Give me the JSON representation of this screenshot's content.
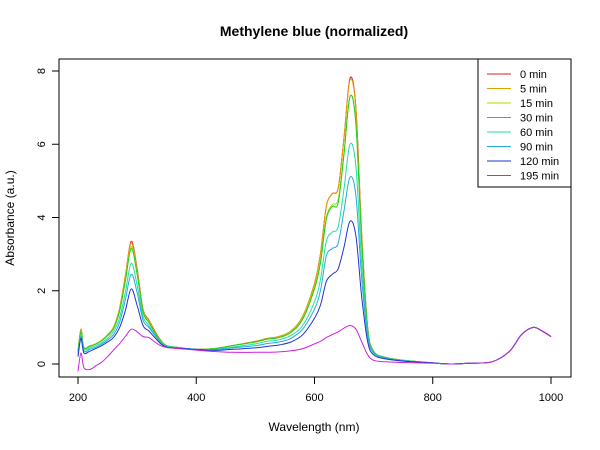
{
  "chart_data": {
    "type": "line",
    "title": "Methylene blue (normalized)",
    "xlabel": "Wavelength (nm)",
    "ylabel": "Absorbance (a.u.)",
    "xlim": [
      200,
      1000
    ],
    "ylim": [
      0,
      8
    ],
    "x_ticks": [
      200,
      400,
      600,
      800,
      1000
    ],
    "y_ticks": [
      0,
      2,
      4,
      6,
      8
    ],
    "x_tick_labels": [
      "200",
      "400",
      "600",
      "800",
      "1000"
    ],
    "y_tick_labels": [
      "0",
      "2",
      "4",
      "6",
      "8"
    ],
    "legend_position": "top-right",
    "x": [
      200,
      205,
      210,
      220,
      230,
      240,
      250,
      260,
      270,
      280,
      290,
      300,
      310,
      320,
      330,
      340,
      350,
      370,
      400,
      430,
      460,
      500,
      520,
      540,
      560,
      580,
      600,
      610,
      620,
      630,
      640,
      650,
      660,
      670,
      680,
      690,
      700,
      720,
      750,
      800,
      830,
      860,
      900,
      930,
      950,
      970,
      985,
      1000
    ],
    "series": [
      {
        "name": "0 min",
        "color": "#dd2222",
        "values": [
          0.35,
          0.95,
          0.45,
          0.5,
          0.55,
          0.65,
          0.8,
          1.0,
          1.5,
          2.4,
          3.35,
          2.6,
          1.5,
          1.2,
          0.9,
          0.65,
          0.5,
          0.45,
          0.4,
          0.42,
          0.5,
          0.62,
          0.7,
          0.75,
          0.9,
          1.3,
          2.2,
          3.0,
          4.3,
          4.65,
          4.8,
          6.2,
          7.8,
          7.0,
          3.5,
          1.0,
          0.35,
          0.18,
          0.1,
          0.03,
          0.0,
          0.02,
          0.06,
          0.35,
          0.8,
          1.0,
          0.9,
          0.75
        ]
      },
      {
        "name": "5 min",
        "color": "#e0a000",
        "values": [
          0.35,
          0.95,
          0.45,
          0.5,
          0.55,
          0.65,
          0.8,
          1.0,
          1.5,
          2.4,
          3.3,
          2.55,
          1.48,
          1.18,
          0.88,
          0.64,
          0.5,
          0.45,
          0.4,
          0.42,
          0.5,
          0.62,
          0.7,
          0.75,
          0.9,
          1.3,
          2.2,
          3.0,
          4.3,
          4.65,
          4.8,
          6.2,
          7.75,
          6.95,
          3.45,
          1.0,
          0.35,
          0.18,
          0.1,
          0.03,
          0.0,
          0.02,
          0.06,
          0.35,
          0.8,
          1.0,
          0.9,
          0.75
        ]
      },
      {
        "name": "15 min",
        "color": "#aadd00",
        "values": [
          0.35,
          0.9,
          0.45,
          0.5,
          0.55,
          0.65,
          0.78,
          0.98,
          1.45,
          2.3,
          3.2,
          2.5,
          1.45,
          1.15,
          0.86,
          0.63,
          0.5,
          0.45,
          0.4,
          0.42,
          0.5,
          0.6,
          0.68,
          0.73,
          0.88,
          1.25,
          2.1,
          2.8,
          4.0,
          4.35,
          4.5,
          5.8,
          7.3,
          6.6,
          3.3,
          0.95,
          0.34,
          0.18,
          0.1,
          0.03,
          0.0,
          0.02,
          0.06,
          0.35,
          0.8,
          1.0,
          0.9,
          0.75
        ]
      },
      {
        "name": "30 min",
        "color": "#22cc22",
        "values": [
          0.35,
          0.88,
          0.44,
          0.48,
          0.54,
          0.63,
          0.77,
          0.96,
          1.42,
          2.25,
          3.15,
          2.45,
          1.42,
          1.13,
          0.85,
          0.62,
          0.5,
          0.45,
          0.4,
          0.42,
          0.5,
          0.6,
          0.68,
          0.72,
          0.86,
          1.22,
          2.05,
          2.75,
          3.95,
          4.3,
          4.4,
          5.75,
          7.3,
          6.55,
          3.25,
          0.95,
          0.34,
          0.18,
          0.1,
          0.03,
          0.0,
          0.02,
          0.06,
          0.35,
          0.8,
          1.0,
          0.9,
          0.75
        ]
      },
      {
        "name": "60 min",
        "color": "#22ddaa",
        "values": [
          0.3,
          0.8,
          0.4,
          0.44,
          0.5,
          0.58,
          0.7,
          0.88,
          1.25,
          1.95,
          2.75,
          2.15,
          1.3,
          1.05,
          0.8,
          0.6,
          0.48,
          0.45,
          0.4,
          0.4,
          0.46,
          0.55,
          0.62,
          0.66,
          0.78,
          1.05,
          1.7,
          2.3,
          3.35,
          3.6,
          3.75,
          4.8,
          6.0,
          5.4,
          2.7,
          0.85,
          0.32,
          0.17,
          0.1,
          0.03,
          0.0,
          0.02,
          0.06,
          0.35,
          0.8,
          1.0,
          0.9,
          0.75
        ]
      },
      {
        "name": "90 min",
        "color": "#22aadd",
        "values": [
          0.25,
          0.75,
          0.35,
          0.4,
          0.46,
          0.54,
          0.65,
          0.8,
          1.12,
          1.75,
          2.45,
          1.95,
          1.2,
          1.0,
          0.78,
          0.58,
          0.47,
          0.44,
          0.4,
          0.39,
          0.44,
          0.5,
          0.56,
          0.6,
          0.7,
          0.95,
          1.5,
          2.0,
          2.95,
          3.15,
          3.3,
          4.2,
          5.1,
          4.6,
          2.3,
          0.75,
          0.3,
          0.16,
          0.09,
          0.03,
          0.0,
          0.02,
          0.06,
          0.35,
          0.8,
          1.0,
          0.9,
          0.75
        ]
      },
      {
        "name": "120 min",
        "color": "#2233cc",
        "values": [
          0.2,
          0.7,
          0.3,
          0.35,
          0.42,
          0.5,
          0.6,
          0.72,
          0.98,
          1.45,
          2.05,
          1.6,
          1.05,
          0.9,
          0.72,
          0.55,
          0.46,
          0.43,
          0.4,
          0.37,
          0.4,
          0.44,
          0.48,
          0.52,
          0.6,
          0.8,
          1.25,
          1.6,
          2.25,
          2.45,
          2.6,
          3.2,
          3.9,
          3.5,
          1.8,
          0.6,
          0.25,
          0.14,
          0.08,
          0.03,
          0.0,
          0.02,
          0.06,
          0.35,
          0.8,
          1.0,
          0.9,
          0.75
        ]
      },
      {
        "name": "195 min",
        "color": "#cc22dd",
        "values": [
          -0.2,
          0.3,
          -0.1,
          -0.15,
          -0.05,
          0.05,
          0.2,
          0.38,
          0.55,
          0.75,
          0.95,
          0.88,
          0.75,
          0.72,
          0.6,
          0.5,
          0.45,
          0.42,
          0.38,
          0.34,
          0.32,
          0.32,
          0.32,
          0.33,
          0.36,
          0.42,
          0.55,
          0.62,
          0.72,
          0.8,
          0.88,
          0.98,
          1.05,
          0.95,
          0.6,
          0.25,
          0.1,
          0.06,
          0.04,
          0.02,
          0.0,
          0.02,
          0.06,
          0.35,
          0.8,
          1.0,
          0.9,
          0.75
        ]
      }
    ]
  }
}
